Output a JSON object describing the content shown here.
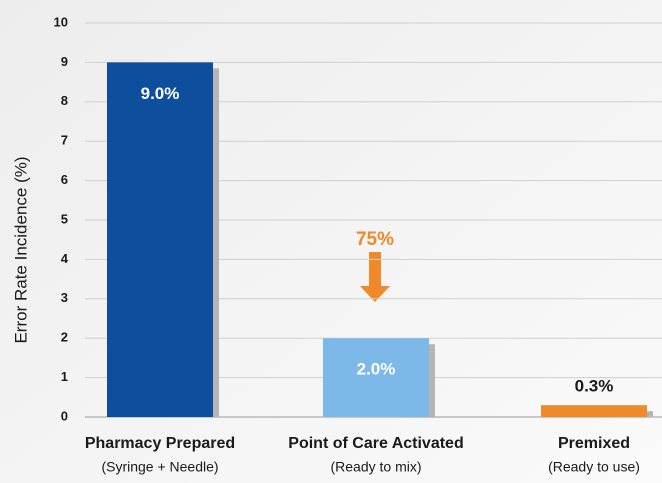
{
  "chart_data": {
    "type": "bar",
    "y_label": "Error Rate Incidence (%)",
    "categories": [
      "Pharmacy Prepared",
      "Point of Care Activated",
      "Premixed"
    ],
    "category_sublabels": [
      "(Syringe + Needle)",
      "(Ready to mix)",
      "(Ready to use)"
    ],
    "values": [
      9,
      2,
      0.3
    ],
    "value_labels": [
      "9.0%",
      "2.0%",
      "0.3%"
    ],
    "colors": [
      "#0d4f9c",
      "#7db9e8",
      "#f0892a"
    ],
    "ylim": [
      0,
      10
    ],
    "yticks": [
      0,
      1,
      2,
      3,
      4,
      5,
      6,
      7,
      8,
      9,
      10
    ],
    "grid": true,
    "annotations": [
      {
        "text": "75%",
        "color": "#f0892a"
      }
    ]
  }
}
